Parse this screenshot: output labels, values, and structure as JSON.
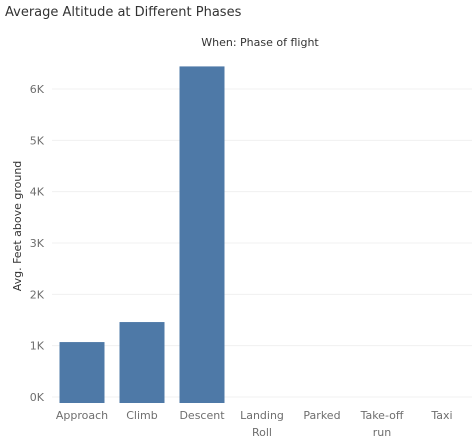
{
  "chart_data": {
    "type": "bar",
    "title": "Average Altitude at Different Phases",
    "header_label": "When: Phase of flight",
    "ylabel": "Avg. Feet above ground",
    "xlabel": "",
    "categories": [
      [
        "Approach"
      ],
      [
        "Climb"
      ],
      [
        "Descent"
      ],
      [
        "Landing",
        "Roll"
      ],
      [
        "Parked"
      ],
      [
        "Take-off",
        "run"
      ],
      [
        "Taxi"
      ]
    ],
    "values": [
      1070,
      1460,
      6440,
      0,
      0,
      0,
      0
    ],
    "ylim": [
      0,
      6700
    ],
    "yticks": [
      0,
      1000,
      2000,
      3000,
      4000,
      5000,
      6000
    ],
    "ytick_labels": [
      "0K",
      "1K",
      "2K",
      "3K",
      "4K",
      "5K",
      "6K"
    ],
    "grid": true,
    "bar_color": "#4e79a7",
    "grid_color": "#f0f0f0"
  }
}
